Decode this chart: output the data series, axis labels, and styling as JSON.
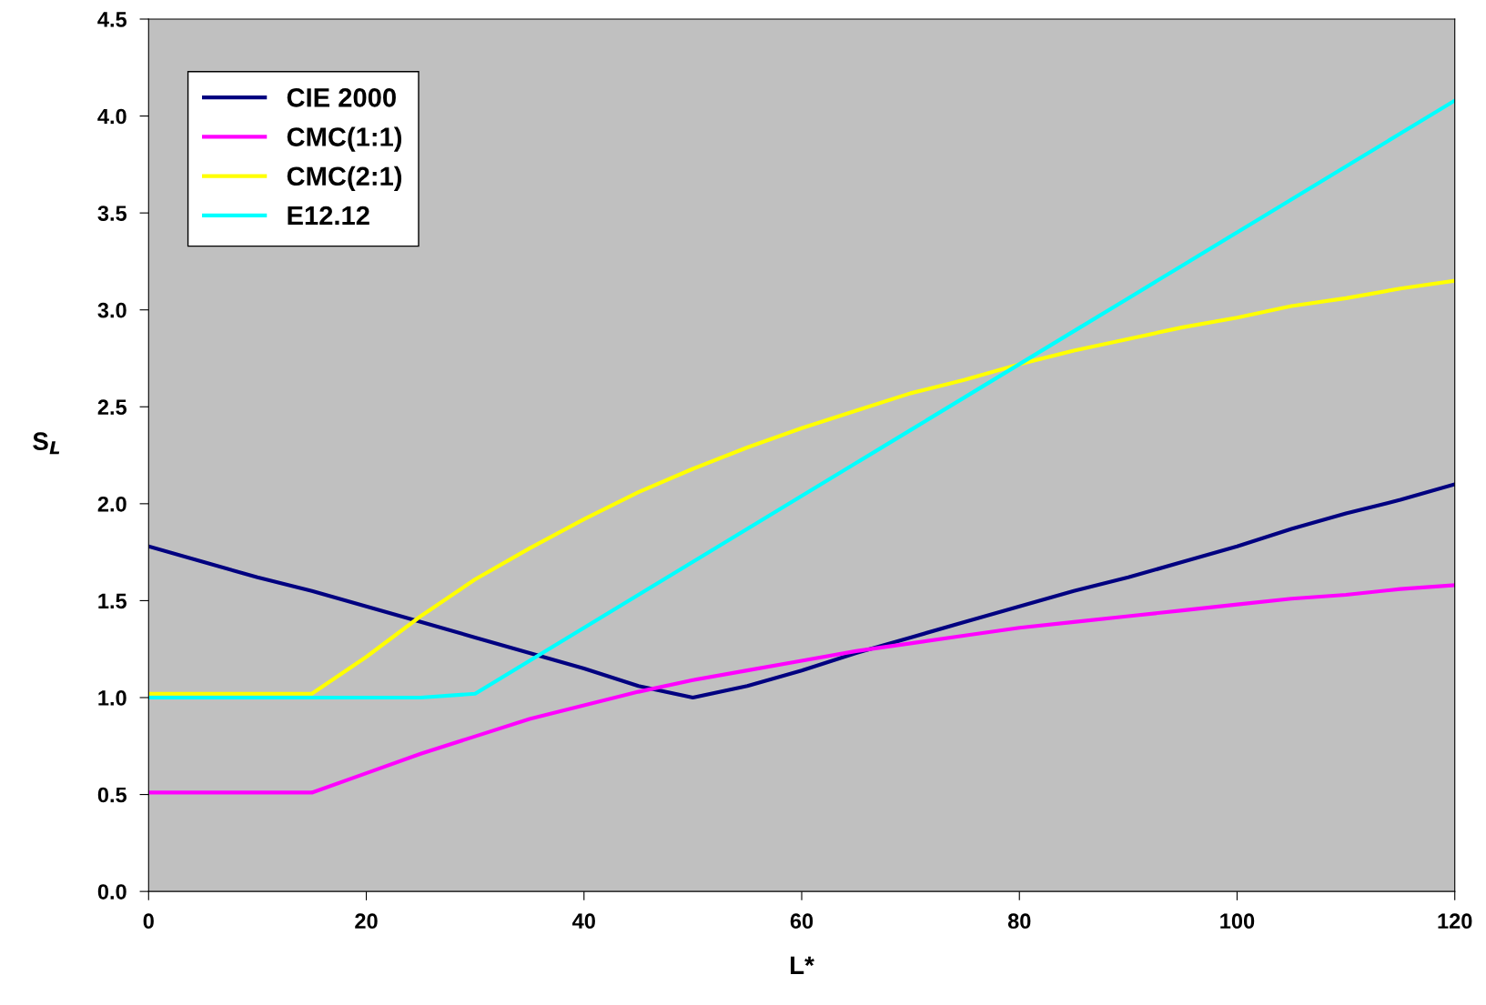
{
  "chart_data": {
    "type": "line",
    "xlabel": "L*",
    "ylabel": "S$_{L}$",
    "x": [
      0,
      5,
      10,
      15,
      20,
      25,
      30,
      35,
      40,
      45,
      50,
      55,
      60,
      65,
      70,
      75,
      80,
      85,
      90,
      95,
      100,
      105,
      110,
      115,
      120
    ],
    "series": [
      {
        "name": "CIE 2000",
        "color": "#000080",
        "values": [
          1.78,
          1.7,
          1.62,
          1.55,
          1.47,
          1.39,
          1.31,
          1.23,
          1.15,
          1.06,
          1.0,
          1.06,
          1.14,
          1.23,
          1.31,
          1.39,
          1.47,
          1.55,
          1.62,
          1.7,
          1.78,
          1.87,
          1.95,
          2.02,
          2.1
        ]
      },
      {
        "name": "CMC(1:1)",
        "color": "#ff00ff",
        "values": [
          0.51,
          0.51,
          0.51,
          0.51,
          0.61,
          0.71,
          0.8,
          0.89,
          0.96,
          1.03,
          1.09,
          1.14,
          1.19,
          1.24,
          1.28,
          1.32,
          1.36,
          1.39,
          1.42,
          1.45,
          1.48,
          1.51,
          1.53,
          1.56,
          1.58
        ]
      },
      {
        "name": "CMC(2:1)",
        "color": "#ffff00",
        "values": [
          1.02,
          1.02,
          1.02,
          1.02,
          1.21,
          1.42,
          1.61,
          1.77,
          1.92,
          2.06,
          2.18,
          2.29,
          2.39,
          2.48,
          2.57,
          2.64,
          2.72,
          2.79,
          2.85,
          2.91,
          2.96,
          3.02,
          3.06,
          3.11,
          3.15
        ]
      },
      {
        "name": "E12.12",
        "color": "#00ffff",
        "values": [
          1.0,
          1.0,
          1.0,
          1.0,
          1.0,
          1.0,
          1.02,
          1.19,
          1.36,
          1.53,
          1.7,
          1.87,
          2.04,
          2.21,
          2.38,
          2.55,
          2.72,
          2.89,
          3.06,
          3.23,
          3.4,
          3.57,
          3.74,
          3.91,
          4.08
        ]
      }
    ],
    "xlim": [
      0,
      120
    ],
    "xticks": [
      0,
      20,
      40,
      60,
      80,
      100,
      120
    ],
    "ylim": [
      0,
      4.5
    ],
    "yticks": [
      {
        "value": 0,
        "label": "0.0"
      },
      {
        "value": 0.5,
        "label": "0.5"
      },
      {
        "value": 1,
        "label": "1.0"
      },
      {
        "value": 1.5,
        "label": "1.5"
      },
      {
        "value": 2,
        "label": "2.0"
      },
      {
        "value": 2.5,
        "label": "2.5"
      },
      {
        "value": 3,
        "label": "3.0"
      },
      {
        "value": 3.5,
        "label": "3.5"
      },
      {
        "value": 4,
        "label": "4.0"
      },
      {
        "value": 4.5,
        "label": "4.5"
      }
    ],
    "legend": "top left",
    "grid": false,
    "marker": "none",
    "line_style": "solid"
  }
}
